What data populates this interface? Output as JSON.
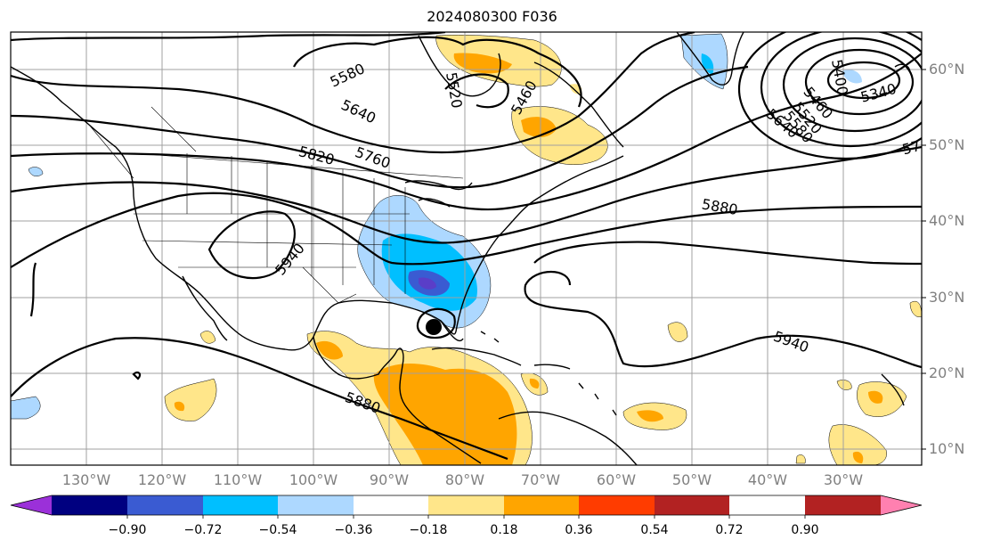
{
  "title": "2024080300 F036",
  "lat_labels": [
    "60°N",
    "50°N",
    "40°N",
    "30°N",
    "20°N",
    "10°N"
  ],
  "lon_labels": [
    "130°W",
    "120°W",
    "110°W",
    "100°W",
    "90°W",
    "80°W",
    "70°W",
    "60°W",
    "50°W",
    "40°W",
    "30°W"
  ],
  "contour_labels": [
    "5580",
    "5520",
    "5460",
    "5640",
    "5760",
    "5820",
    "5880",
    "5940",
    "5400",
    "5460",
    "5520",
    "5580",
    "5640",
    "5340",
    "57",
    "5940",
    "5880"
  ],
  "colorbar": {
    "ticks": [
      "−0.90",
      "−0.72",
      "−0.54",
      "−0.36",
      "−0.18",
      "0.18",
      "0.36",
      "0.54",
      "0.72",
      "0.90"
    ],
    "colors": [
      "#9b30d9",
      "#000080",
      "#3a5bd2",
      "#00bfff",
      "#add8ff",
      "#ffffff",
      "#ffe68a",
      "#ffa500",
      "#ff3c00",
      "#b22222",
      "#ff80b0"
    ]
  },
  "storm_marker": "tropical-storm-symbol"
}
